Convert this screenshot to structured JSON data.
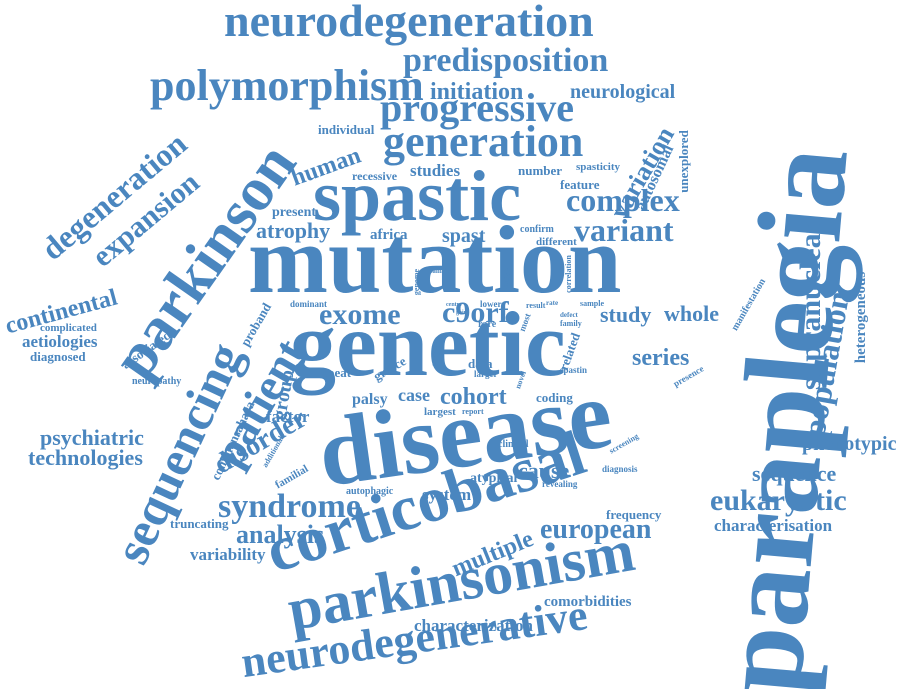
{
  "cloud": {
    "color": "#4a86bf",
    "words": [
      "neurodegeneration",
      "predisposition",
      "polymorphism",
      "initiation",
      "neurological",
      "progressive",
      "individual",
      "generation",
      "variation",
      "unexplored",
      "parkinson",
      "degeneration",
      "expansion",
      "human",
      "studies",
      "number",
      "spasticity",
      "feature",
      "autosomal",
      "recessive",
      "spastic",
      "complex",
      "paraplegia",
      "present",
      "atrophy",
      "africa",
      "spast",
      "confirm",
      "variant",
      "different",
      "mutation",
      "supranuclear",
      "continental",
      "complicated",
      "aetiologies",
      "diagnosed",
      "associated",
      "neuropathy",
      "proband",
      "dominant",
      "exome",
      "c9orf",
      "study",
      "whole",
      "manifestation",
      "heterogeneous",
      "population",
      "genetic",
      "sequencing",
      "patient",
      "greece",
      "repeat",
      "data",
      "larger",
      "related",
      "spastin",
      "series",
      "presence",
      "palsy",
      "case",
      "cohort",
      "coding",
      "largest",
      "report",
      "disease",
      "factor",
      "disorder",
      "group",
      "psychiatric",
      "technologies",
      "phenotypic",
      "clinical",
      "screening",
      "diagnosis",
      "commonsahara",
      "additional",
      "familial",
      "cause",
      "atypical",
      "revealing",
      "sequence",
      "autophagic",
      "system",
      "eukaryotic",
      "syndrome",
      "corticobasal",
      "frequency",
      "analysis",
      "truncating",
      "european",
      "characterisation",
      "variability",
      "multiple",
      "parkinsonism",
      "comorbidities",
      "characterization",
      "neurodegenerative",
      "genome",
      "families",
      "result",
      "correlation",
      "lower",
      "sample",
      "defect",
      "family",
      "most",
      "rare",
      "novel",
      "project",
      "rate",
      "centre",
      "gain",
      "method"
    ]
  }
}
